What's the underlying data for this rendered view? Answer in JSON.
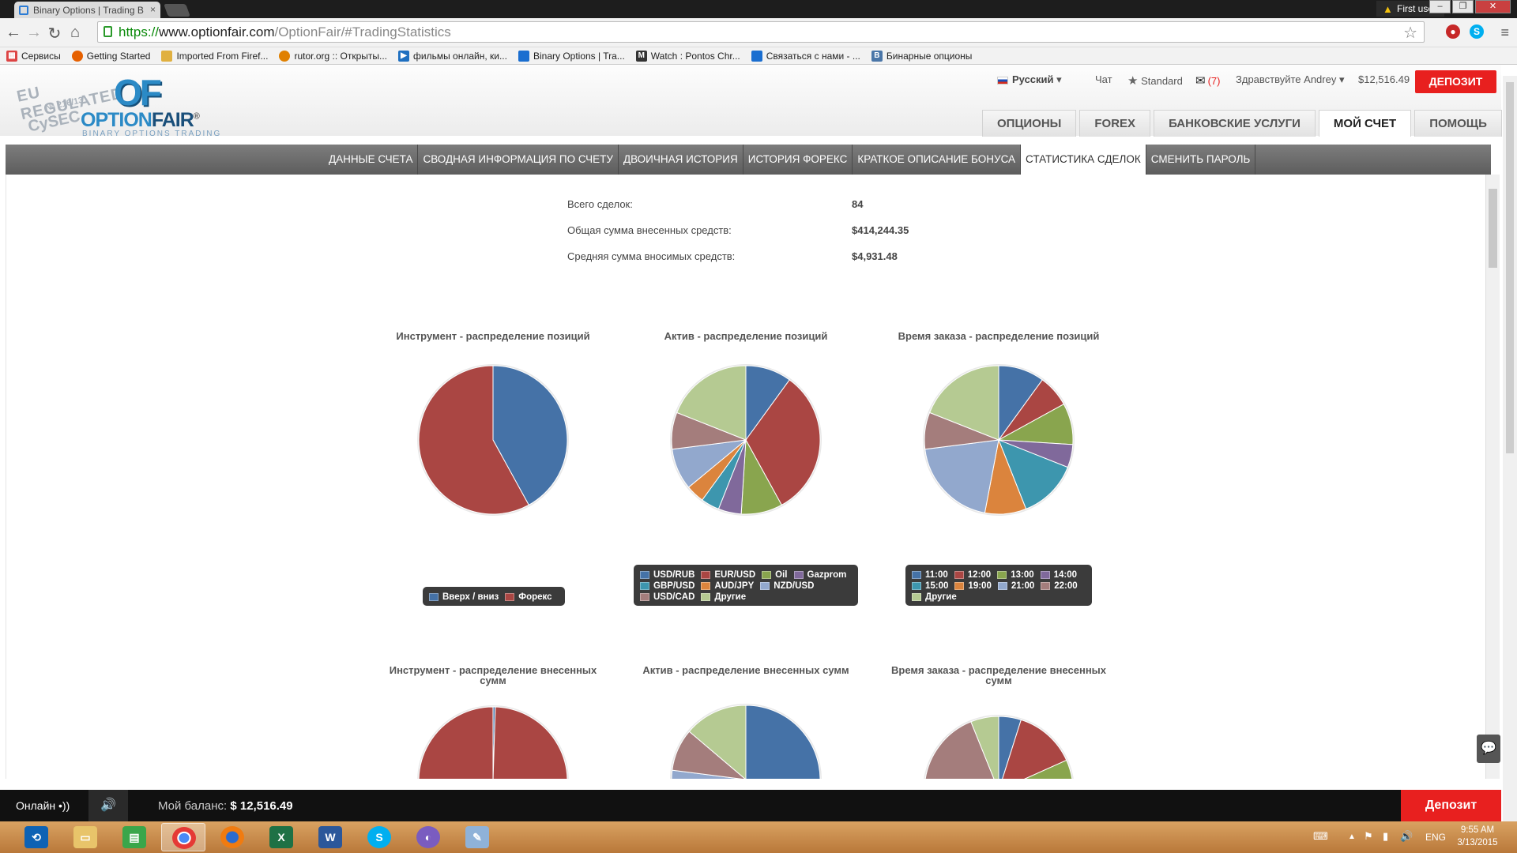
{
  "browser": {
    "tab_title": "Binary Options | Trading B",
    "tab_close": "×",
    "profile_name": "First user",
    "url_scheme": "https://",
    "url_host": "www.optionfair.com",
    "url_path": "/OptionFair/#TradingStatistics",
    "bookmarks": [
      {
        "label": "Сервисы",
        "icon": "apps-icon",
        "color": "#d44"
      },
      {
        "label": "Getting Started",
        "icon": "firefox-icon",
        "color": "#e66000"
      },
      {
        "label": "Imported From Firef...",
        "icon": "folder-icon",
        "color": "#e0b040"
      },
      {
        "label": "rutor.org :: Открыты...",
        "icon": "rutor-icon",
        "color": "#e08000"
      },
      {
        "label": "фильмы онлайн, ки...",
        "icon": "play-icon",
        "color": "#1e6fc0"
      },
      {
        "label": "Binary Options | Tra...",
        "icon": "optionfair-icon",
        "color": "#1a6ed0"
      },
      {
        "label": "Watch : Pontos Chr...",
        "icon": "m-icon",
        "color": "#333"
      },
      {
        "label": "Связаться с нами - ...",
        "icon": "optionfair-icon",
        "color": "#1a6ed0"
      },
      {
        "label": "Бинарные опционы",
        "icon": "vk-icon",
        "color": "#4a76a8"
      }
    ]
  },
  "logo": {
    "stamp_line1": "EU REGULATED",
    "stamp_line2": "№ 216/13",
    "stamp_line3": "CySEC",
    "mark": "OF",
    "brand_option": "OPTION",
    "brand_fair": "FAIR",
    "registered": "®",
    "tagline": "BINARY OPTIONS TRADING"
  },
  "header": {
    "language": "Русский",
    "chat": "Чат",
    "account_type": "Standard",
    "messages_count": "(7)",
    "greeting": "Здравствуйте Andrey",
    "balance": "$12,516.49",
    "deposit_label": "ДЕПОЗИТ"
  },
  "main_nav": [
    "ОПЦИОНЫ",
    "FOREX",
    "БАНКОВСКИЕ УСЛУГИ",
    "МОЙ СЧЕТ",
    "ПОМОЩЬ"
  ],
  "sub_nav": [
    "ДАННЫЕ СЧЕТА",
    "СВОДНАЯ ИНФОРМАЦИЯ ПО СЧЕТУ",
    "ДВОИЧНАЯ ИСТОРИЯ",
    "ИСТОРИЯ ФОРЕКС",
    "КРАТКОЕ ОПИСАНИЕ БОНУСА",
    "СТАТИСТИКА СДЕЛОК",
    "СМЕНИТЬ ПАРОЛЬ"
  ],
  "stats": [
    {
      "label": "Всего сделок:",
      "value": "84"
    },
    {
      "label": "Общая сумма внесенных средств:",
      "value": "$414,244.35"
    },
    {
      "label": "Средняя сумма вносимых средств:",
      "value": "$4,931.48"
    }
  ],
  "colors": {
    "blue": "#4572a7",
    "red": "#aa4643",
    "green": "#89a54e",
    "purple": "#80699b",
    "teal": "#3d96ae",
    "orange": "#db843d",
    "lightblue": "#92a8cd",
    "rose": "#a47d7c",
    "lightgreen": "#b5ca92",
    "deposit": "#e8201f"
  },
  "chart_data": [
    {
      "type": "pie",
      "title": "Инструмент - распределение позиций",
      "labels": [
        "Вверх / вниз",
        "Форекс"
      ],
      "values": [
        42,
        58
      ],
      "colors": [
        "#4572a7",
        "#aa4643"
      ]
    },
    {
      "type": "pie",
      "title": "Актив - распределение позиций",
      "labels": [
        "USD/RUB",
        "EUR/USD",
        "Oil",
        "Gazprom",
        "GBP/USD",
        "AUD/JPY",
        "NZD/USD",
        "USD/CAD",
        "Другие"
      ],
      "values": [
        10,
        32,
        9,
        5,
        4,
        4,
        9,
        8,
        19
      ],
      "colors": [
        "#4572a7",
        "#aa4643",
        "#89a54e",
        "#80699b",
        "#3d96ae",
        "#db843d",
        "#92a8cd",
        "#a47d7c",
        "#b5ca92"
      ]
    },
    {
      "type": "pie",
      "title": "Время заказа - распределение позиций",
      "labels": [
        "11:00",
        "12:00",
        "13:00",
        "14:00",
        "15:00",
        "19:00",
        "21:00",
        "22:00",
        "Другие"
      ],
      "values": [
        10,
        7,
        9,
        5,
        13,
        9,
        20,
        8,
        19
      ],
      "colors": [
        "#4572a7",
        "#aa4643",
        "#89a54e",
        "#80699b",
        "#3d96ae",
        "#db843d",
        "#92a8cd",
        "#a47d7c",
        "#b5ca92"
      ]
    },
    {
      "type": "pie",
      "title": "Инструмент - распределение внесенных сумм",
      "labels": [
        "Вверх / вниз",
        "Форекс"
      ],
      "values": [
        0.5,
        99.5
      ],
      "colors": [
        "#4572a7",
        "#aa4643"
      ]
    },
    {
      "type": "pie",
      "title": "Актив - распределение внесенных сумм",
      "labels": [
        "USD/RUB",
        "EUR/USD",
        "Oil",
        "Gazprom",
        "GBP/USD",
        "AUD/JPY",
        "NZD/USD",
        "USD/CAD",
        "Другие"
      ],
      "values": [
        50,
        0.3,
        0.2,
        0.3,
        0.2,
        6,
        10,
        8,
        12
      ],
      "colors": [
        "#4572a7",
        "#aa4643",
        "#89a54e",
        "#80699b",
        "#3d96ae",
        "#db843d",
        "#92a8cd",
        "#a47d7c",
        "#b5ca92"
      ]
    },
    {
      "type": "pie",
      "title": "Время заказа - распределение внесенных сумм",
      "labels": [
        "11:00",
        "12:00",
        "13:00",
        "14:00",
        "15:00",
        "19:00",
        "21:00",
        "22:00",
        "Другие"
      ],
      "values": [
        4,
        11,
        13,
        2,
        2,
        9,
        22,
        14,
        5
      ],
      "colors": [
        "#4572a7",
        "#aa4643",
        "#89a54e",
        "#80699b",
        "#3d96ae",
        "#db843d",
        "#92a8cd",
        "#a47d7c",
        "#b5ca92"
      ]
    }
  ],
  "bottom_bar": {
    "online": "Онлайн",
    "balance_label": "Мой баланс:",
    "balance_value": "$ 12,516.49",
    "deposit_label": "Депозит"
  },
  "taskbar": {
    "apps": [
      "teamviewer-icon",
      "explorer-icon",
      "calculator-icon",
      "chrome-icon",
      "firefox-icon",
      "excel-icon",
      "word-icon",
      "skype-icon",
      "app-icon",
      "paint-icon"
    ],
    "language": "ENG",
    "time": "9:55 AM",
    "date": "3/13/2015"
  }
}
